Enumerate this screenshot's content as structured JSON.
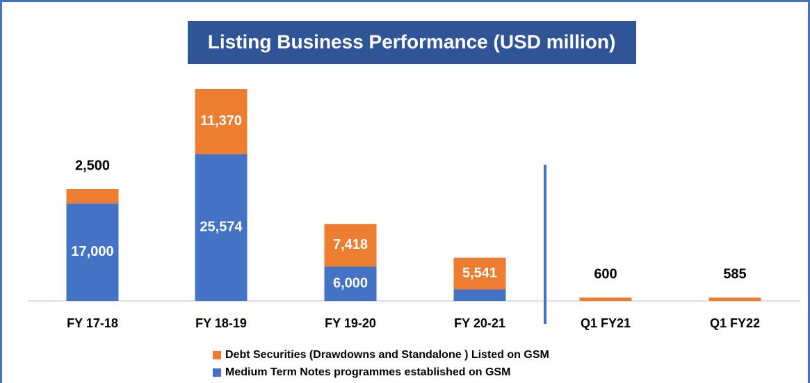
{
  "chart_data": {
    "type": "stacked-bar",
    "title": "Listing Business Performance (USD million)",
    "categories": [
      "FY 17-18",
      "FY 18-19",
      "FY 19-20",
      "FY 20-21",
      "Q1 FY21",
      "Q1 FY22"
    ],
    "series": [
      {
        "name": "Medium Term Notes programmes established on GSM",
        "color": "#4472c4",
        "values": [
          17000,
          25574,
          6000,
          2000,
          null,
          null
        ],
        "value_labels": [
          "17,000",
          "25,574",
          "6,000",
          "2,000",
          null,
          null
        ]
      },
      {
        "name": "Debt Securities (Drawdowns and Standalone ) Listed on GSM",
        "color": "#ed7d31",
        "values": [
          2500,
          11370,
          7418,
          5541,
          600,
          585
        ],
        "value_labels": [
          "2,500",
          "11,370",
          "7,418",
          "5,541",
          "600",
          "585"
        ]
      }
    ]
  }
}
